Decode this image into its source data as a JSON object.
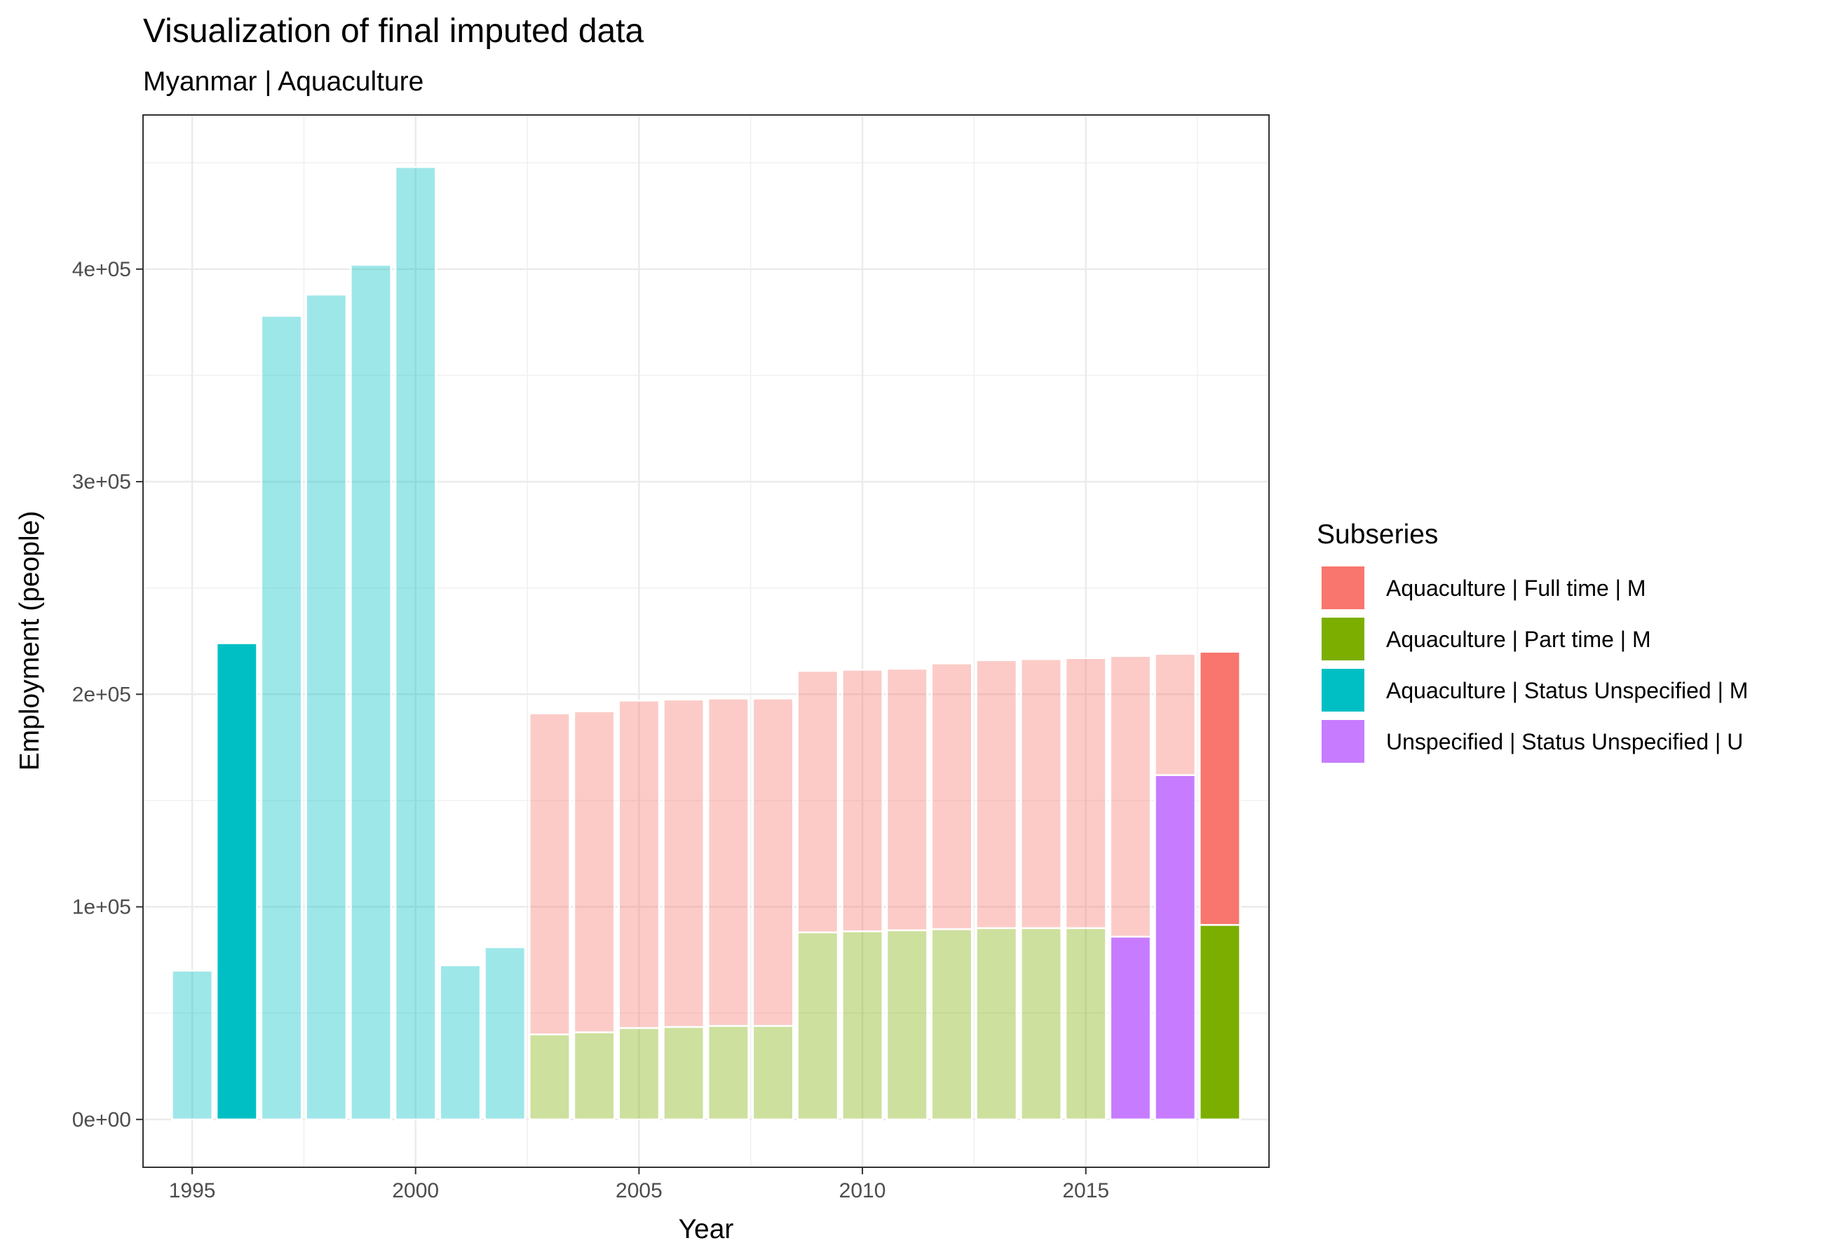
{
  "chart_data": {
    "type": "bar",
    "stacked": true,
    "title": "Visualization of final imputed data",
    "subtitle": "Myanmar | Aquaculture",
    "xlabel": "Year",
    "ylabel": "Employment (people)",
    "x_ticks": [
      "1995",
      "2000",
      "2005",
      "2010",
      "2015"
    ],
    "y_ticks": [
      "0e+00",
      "1e+05",
      "2e+05",
      "3e+05",
      "4e+05"
    ],
    "y_tick_values": [
      0,
      100000,
      200000,
      300000,
      400000
    ],
    "xlim": [
      1993.9,
      2019.1
    ],
    "ylim": [
      -22500,
      472500
    ],
    "grid": true,
    "legend": {
      "title": "Subseries",
      "position": "right",
      "entries": [
        {
          "key": "full",
          "label": "Aquaculture | Full time | M",
          "color": "#F8766D"
        },
        {
          "key": "part",
          "label": "Aquaculture | Part time | M",
          "color": "#7CAE00"
        },
        {
          "key": "stat",
          "label": "Aquaculture | Status Unspecified | M",
          "color": "#00BFC4"
        },
        {
          "key": "unsp",
          "label": "Unspecified | Status Unspecified | U",
          "color": "#C77CFF"
        }
      ]
    },
    "faded_alpha": 0.38,
    "bars": [
      {
        "year": 1995,
        "imputed": true,
        "segments": [
          {
            "series": "stat",
            "value": 70000
          }
        ]
      },
      {
        "year": 1996,
        "imputed": false,
        "segments": [
          {
            "series": "stat",
            "value": 224000
          }
        ]
      },
      {
        "year": 1997,
        "imputed": true,
        "segments": [
          {
            "series": "stat",
            "value": 378000
          }
        ]
      },
      {
        "year": 1998,
        "imputed": true,
        "segments": [
          {
            "series": "stat",
            "value": 388000
          }
        ]
      },
      {
        "year": 1999,
        "imputed": true,
        "segments": [
          {
            "series": "stat",
            "value": 402000
          }
        ]
      },
      {
        "year": 2000,
        "imputed": true,
        "segments": [
          {
            "series": "stat",
            "value": 448000
          }
        ]
      },
      {
        "year": 2001,
        "imputed": true,
        "segments": [
          {
            "series": "stat",
            "value": 72500
          }
        ]
      },
      {
        "year": 2002,
        "imputed": true,
        "segments": [
          {
            "series": "stat",
            "value": 81000
          }
        ]
      },
      {
        "year": 2003,
        "imputed": true,
        "segments": [
          {
            "series": "part",
            "value": 40000
          },
          {
            "series": "full",
            "value": 151000
          }
        ]
      },
      {
        "year": 2004,
        "imputed": true,
        "segments": [
          {
            "series": "part",
            "value": 41000
          },
          {
            "series": "full",
            "value": 151000
          }
        ]
      },
      {
        "year": 2005,
        "imputed": true,
        "segments": [
          {
            "series": "part",
            "value": 43000
          },
          {
            "series": "full",
            "value": 154000
          }
        ]
      },
      {
        "year": 2006,
        "imputed": true,
        "segments": [
          {
            "series": "part",
            "value": 43500
          },
          {
            "series": "full",
            "value": 154000
          }
        ]
      },
      {
        "year": 2007,
        "imputed": true,
        "segments": [
          {
            "series": "part",
            "value": 44000
          },
          {
            "series": "full",
            "value": 154000
          }
        ]
      },
      {
        "year": 2008,
        "imputed": true,
        "segments": [
          {
            "series": "part",
            "value": 44000
          },
          {
            "series": "full",
            "value": 154000
          }
        ]
      },
      {
        "year": 2009,
        "imputed": true,
        "segments": [
          {
            "series": "part",
            "value": 88000
          },
          {
            "series": "full",
            "value": 123000
          }
        ]
      },
      {
        "year": 2010,
        "imputed": true,
        "segments": [
          {
            "series": "part",
            "value": 88500
          },
          {
            "series": "full",
            "value": 123000
          }
        ]
      },
      {
        "year": 2011,
        "imputed": true,
        "segments": [
          {
            "series": "part",
            "value": 89000
          },
          {
            "series": "full",
            "value": 123000
          }
        ]
      },
      {
        "year": 2012,
        "imputed": true,
        "segments": [
          {
            "series": "part",
            "value": 89500
          },
          {
            "series": "full",
            "value": 125000
          }
        ]
      },
      {
        "year": 2013,
        "imputed": true,
        "segments": [
          {
            "series": "part",
            "value": 90000
          },
          {
            "series": "full",
            "value": 126000
          }
        ]
      },
      {
        "year": 2014,
        "imputed": true,
        "segments": [
          {
            "series": "part",
            "value": 90000
          },
          {
            "series": "full",
            "value": 126500
          }
        ]
      },
      {
        "year": 2015,
        "imputed": true,
        "segments": [
          {
            "series": "part",
            "value": 90000
          },
          {
            "series": "full",
            "value": 127000
          }
        ]
      },
      {
        "year": 2016,
        "imputed": false,
        "segments": [
          {
            "series": "unsp",
            "value": 86000
          }
        ]
      },
      {
        "year": 2016,
        "imputed": true,
        "segments": [
          {
            "series": "full",
            "value": 132000,
            "base": 86000
          }
        ]
      },
      {
        "year": 2017,
        "imputed": false,
        "segments": [
          {
            "series": "unsp",
            "value": 162000
          }
        ]
      },
      {
        "year": 2017,
        "imputed": true,
        "segments": [
          {
            "series": "full",
            "value": 57000,
            "base": 162000
          }
        ]
      },
      {
        "year": 2018,
        "imputed": false,
        "segments": [
          {
            "series": "part",
            "value": 91500
          },
          {
            "series": "full",
            "value": 128500
          }
        ]
      }
    ]
  }
}
